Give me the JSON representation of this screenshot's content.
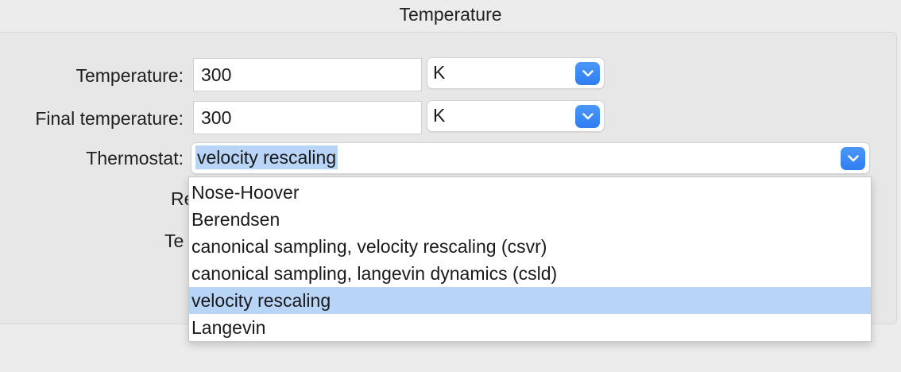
{
  "window": {
    "section_title": "Temperature"
  },
  "form": {
    "temperature": {
      "label": "Temperature:",
      "value": "300",
      "unit": "K"
    },
    "final_temperature": {
      "label": "Final temperature:",
      "value": "300",
      "unit": "K"
    },
    "thermostat": {
      "label": "Thermostat:",
      "selected": "velocity rescaling",
      "options": [
        "Nose-Hoover",
        "Berendsen",
        "canonical sampling, velocity rescaling (csvr)",
        "canonical sampling, langevin dynamics (csld)",
        "velocity rescaling",
        "Langevin"
      ],
      "highlighted_index": 4
    },
    "hidden_labels": {
      "row4_fragment": "Re",
      "row5_fragment": "Te"
    }
  },
  "colors": {
    "accent": "#3585f5",
    "selection": "#b8d4f7",
    "background": "#ececec"
  },
  "icons": {
    "popup_button": "chevron-down-icon"
  }
}
